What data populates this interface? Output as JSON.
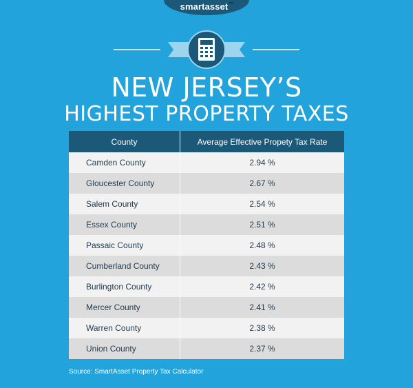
{
  "brand": {
    "logo_text": "smartasset",
    "trademark": "™"
  },
  "emblem": {
    "icon": "calculator-icon"
  },
  "title": {
    "line1": "NEW JERSEY’S",
    "line2": "HIGHEST PROPERTY TAXES"
  },
  "table": {
    "headers": [
      "County",
      "Average Effective Propety Tax Rate"
    ],
    "rows": [
      {
        "county": "Camden County",
        "rate": "2.94 %"
      },
      {
        "county": "Gloucester County",
        "rate": "2.67 %"
      },
      {
        "county": "Salem County",
        "rate": "2.54 %"
      },
      {
        "county": "Essex County",
        "rate": "2.51 %"
      },
      {
        "county": "Passaic County",
        "rate": "2.48 %"
      },
      {
        "county": "Cumberland County",
        "rate": "2.43 %"
      },
      {
        "county": "Burlington County",
        "rate": "2.42 %"
      },
      {
        "county": "Mercer County",
        "rate": "2.41 %"
      },
      {
        "county": "Warren County",
        "rate": "2.38 %"
      },
      {
        "county": "Union County",
        "rate": "2.37 %"
      }
    ]
  },
  "source": "Source: SmartAsset Property Tax Calculator",
  "colors": {
    "background": "#22a3dc",
    "header_navy": "#1c5877",
    "ribbon": "#9fd4ef",
    "row_light": "#f2f2f2",
    "row_dark": "#dcdcdc"
  }
}
